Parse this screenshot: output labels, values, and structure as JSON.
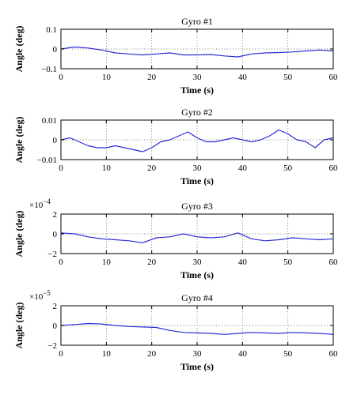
{
  "chart_data": [
    {
      "type": "line",
      "title": "Gyro #1",
      "xlabel": "Time (s)",
      "ylabel": "Angle (deg)",
      "exponent_label": "",
      "xlim": [
        0,
        60
      ],
      "ylim": [
        -0.1,
        0.1
      ],
      "x_ticks": [
        0,
        10,
        20,
        30,
        40,
        50,
        60
      ],
      "x_tick_labels": [
        "0",
        "10",
        "20",
        "30",
        "40",
        "50",
        "60"
      ],
      "y_ticks": [
        0.1,
        0,
        -0.1
      ],
      "y_tick_labels": [
        "0.1",
        "0",
        "−0.1"
      ],
      "grid": true,
      "series": [
        {
          "color": "#2b2bd6",
          "x": [
            0,
            3,
            6,
            9,
            12,
            15,
            18,
            21,
            24,
            27,
            30,
            33,
            36,
            39,
            42,
            45,
            48,
            51,
            54,
            57,
            60
          ],
          "y": [
            0.0,
            0.01,
            0.005,
            -0.005,
            -0.02,
            -0.025,
            -0.03,
            -0.025,
            -0.02,
            -0.03,
            -0.03,
            -0.028,
            -0.035,
            -0.04,
            -0.025,
            -0.02,
            -0.018,
            -0.015,
            -0.01,
            -0.005,
            -0.01
          ]
        }
      ]
    },
    {
      "type": "line",
      "title": "Gyro #2",
      "xlabel": "Time (s)",
      "ylabel": "Angle (deg)",
      "exponent_label": "",
      "xlim": [
        0,
        60
      ],
      "ylim": [
        -0.01,
        0.01
      ],
      "x_ticks": [
        0,
        10,
        20,
        30,
        40,
        50,
        60
      ],
      "x_tick_labels": [
        "0",
        "10",
        "20",
        "30",
        "40",
        "50",
        "60"
      ],
      "y_ticks": [
        0.01,
        0,
        -0.01
      ],
      "y_tick_labels": [
        "0.01",
        "0",
        "−0.01"
      ],
      "grid": true,
      "series": [
        {
          "color": "#2b2bd6",
          "x": [
            0,
            2,
            4,
            6,
            8,
            10,
            12,
            14,
            16,
            18,
            20,
            22,
            24,
            26,
            28,
            30,
            32,
            34,
            36,
            38,
            40,
            42,
            44,
            46,
            48,
            50,
            52,
            54,
            56,
            58,
            60
          ],
          "y": [
            0.0,
            0.001,
            -0.001,
            -0.003,
            -0.004,
            -0.004,
            -0.003,
            -0.004,
            -0.005,
            -0.006,
            -0.004,
            -0.001,
            0.0,
            0.002,
            0.004,
            0.001,
            -0.001,
            -0.001,
            0.0,
            0.001,
            0.0,
            -0.001,
            0.0,
            0.002,
            0.005,
            0.003,
            0.0,
            -0.001,
            -0.004,
            0.0,
            0.001
          ]
        }
      ]
    },
    {
      "type": "line",
      "title": "Gyro #3",
      "xlabel": "Time (s)",
      "ylabel": "Angle (deg)",
      "exponent_label": "×10^−4",
      "xlim": [
        0,
        60
      ],
      "ylim": [
        -2,
        2
      ],
      "x_ticks": [
        0,
        10,
        20,
        30,
        40,
        50,
        60
      ],
      "x_tick_labels": [
        "0",
        "10",
        "20",
        "30",
        "40",
        "50",
        "60"
      ],
      "y_ticks": [
        2,
        0,
        -2
      ],
      "y_tick_labels": [
        "2",
        "0",
        "−2"
      ],
      "grid": true,
      "series": [
        {
          "color": "#2b2bd6",
          "x": [
            0,
            3,
            6,
            9,
            12,
            15,
            18,
            21,
            24,
            27,
            30,
            33,
            36,
            39,
            42,
            45,
            48,
            51,
            54,
            57,
            60
          ],
          "y": [
            0.1,
            0.0,
            -0.3,
            -0.5,
            -0.6,
            -0.7,
            -0.9,
            -0.4,
            -0.3,
            0.0,
            -0.3,
            -0.4,
            -0.3,
            0.1,
            -0.5,
            -0.7,
            -0.6,
            -0.4,
            -0.5,
            -0.6,
            -0.5
          ]
        }
      ]
    },
    {
      "type": "line",
      "title": "Gyro #4",
      "xlabel": "Time (s)",
      "ylabel": "Angle (deg)",
      "exponent_label": "×10^−5",
      "xlim": [
        0,
        60
      ],
      "ylim": [
        -2,
        2
      ],
      "x_ticks": [
        0,
        10,
        20,
        30,
        40,
        50,
        60
      ],
      "x_tick_labels": [
        "0",
        "10",
        "20",
        "30",
        "40",
        "50",
        "60"
      ],
      "y_ticks": [
        2,
        0,
        -2
      ],
      "y_tick_labels": [
        "2",
        "0",
        "−2"
      ],
      "grid": true,
      "series": [
        {
          "color": "#2b2bd6",
          "x": [
            0,
            3,
            6,
            9,
            12,
            15,
            18,
            21,
            24,
            27,
            30,
            33,
            36,
            39,
            42,
            45,
            48,
            51,
            54,
            57,
            60
          ],
          "y": [
            0.0,
            0.1,
            0.2,
            0.15,
            0.0,
            -0.1,
            -0.15,
            -0.2,
            -0.5,
            -0.7,
            -0.75,
            -0.8,
            -0.9,
            -0.8,
            -0.7,
            -0.75,
            -0.8,
            -0.7,
            -0.75,
            -0.8,
            -0.9
          ]
        }
      ]
    }
  ]
}
